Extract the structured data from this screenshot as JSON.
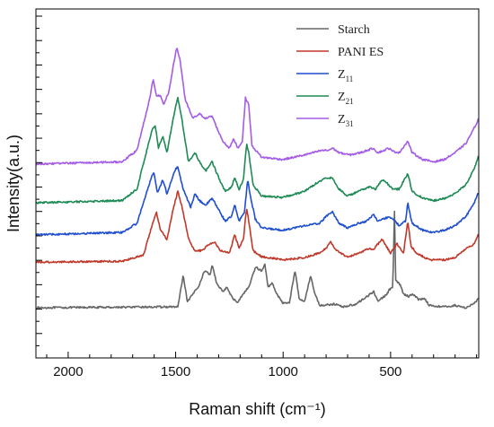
{
  "chart_data": {
    "type": "line",
    "title": "",
    "xlabel": "Raman shift  (cm⁻¹)",
    "ylabel": "Intensity(a.u.)",
    "xlim": [
      2150,
      90
    ],
    "x_reversed": true,
    "xticks": [
      2000,
      1500,
      1000,
      500
    ],
    "y_tick_labels_shown": false,
    "legend": {
      "position": "top-right",
      "frame": false
    },
    "grid": false,
    "series": [
      {
        "name": "Starch",
        "label_main": "Starch",
        "label_sub": "",
        "color": "#666666",
        "baseline": 0,
        "noise": 0.02,
        "points": [
          [
            2150,
            0
          ],
          [
            1490,
            0.02
          ],
          [
            1465,
            0.7
          ],
          [
            1445,
            0.12
          ],
          [
            1420,
            0.3
          ],
          [
            1390,
            0.5
          ],
          [
            1365,
            0.82
          ],
          [
            1340,
            0.72
          ],
          [
            1330,
            0.95
          ],
          [
            1310,
            0.55
          ],
          [
            1280,
            0.35
          ],
          [
            1262,
            0.45
          ],
          [
            1235,
            0.2
          ],
          [
            1210,
            0.12
          ],
          [
            1190,
            0.28
          ],
          [
            1160,
            0.45
          ],
          [
            1128,
            0.9
          ],
          [
            1100,
            0.8
          ],
          [
            1085,
            0.95
          ],
          [
            1070,
            0.45
          ],
          [
            1050,
            0.55
          ],
          [
            1030,
            0.3
          ],
          [
            1000,
            0.1
          ],
          [
            970,
            0.12
          ],
          [
            945,
            0.82
          ],
          [
            925,
            0.2
          ],
          [
            900,
            0.15
          ],
          [
            872,
            0.7
          ],
          [
            855,
            0.35
          ],
          [
            830,
            0.05
          ],
          [
            760,
            0.08
          ],
          [
            720,
            0.02
          ],
          [
            660,
            0.08
          ],
          [
            610,
            0.25
          ],
          [
            578,
            0.35
          ],
          [
            560,
            0.15
          ],
          [
            520,
            0.28
          ],
          [
            505,
            0.4
          ],
          [
            490,
            0.45
          ],
          [
            482,
            2.1
          ],
          [
            476,
            0.6
          ],
          [
            455,
            0.5
          ],
          [
            440,
            0.3
          ],
          [
            415,
            0.25
          ],
          [
            395,
            0.3
          ],
          [
            370,
            0.18
          ],
          [
            340,
            0.2
          ],
          [
            320,
            0.05
          ],
          [
            250,
            0.02
          ],
          [
            200,
            0.05
          ],
          [
            150,
            0
          ],
          [
            110,
            0.1
          ],
          [
            90,
            0.2
          ]
        ]
      },
      {
        "name": "PANI ES",
        "label_main": "PANI ES",
        "label_sub": "",
        "color": "#c0392b",
        "baseline": 1,
        "noise": 0.02,
        "points": [
          [
            2150,
            0
          ],
          [
            1750,
            0.02
          ],
          [
            1650,
            0.15
          ],
          [
            1610,
            0.8
          ],
          [
            1590,
            1.1
          ],
          [
            1570,
            0.7
          ],
          [
            1555,
            0.6
          ],
          [
            1540,
            0.5
          ],
          [
            1510,
            1.2
          ],
          [
            1490,
            1.55
          ],
          [
            1470,
            1.2
          ],
          [
            1440,
            0.5
          ],
          [
            1410,
            0.25
          ],
          [
            1380,
            0.25
          ],
          [
            1340,
            0.4
          ],
          [
            1320,
            0.45
          ],
          [
            1290,
            0.25
          ],
          [
            1250,
            0.2
          ],
          [
            1225,
            0.6
          ],
          [
            1205,
            0.3
          ],
          [
            1185,
            0.5
          ],
          [
            1170,
            1.2
          ],
          [
            1160,
            0.9
          ],
          [
            1140,
            0.25
          ],
          [
            1100,
            0.12
          ],
          [
            1000,
            0.05
          ],
          [
            900,
            0.1
          ],
          [
            830,
            0.2
          ],
          [
            800,
            0.3
          ],
          [
            780,
            0.45
          ],
          [
            760,
            0.3
          ],
          [
            700,
            0.1
          ],
          [
            650,
            0.2
          ],
          [
            600,
            0.3
          ],
          [
            580,
            0.28
          ],
          [
            540,
            0.5
          ],
          [
            520,
            0.35
          ],
          [
            500,
            0.2
          ],
          [
            470,
            0.4
          ],
          [
            440,
            0.2
          ],
          [
            420,
            0.9
          ],
          [
            405,
            0.35
          ],
          [
            380,
            0.2
          ],
          [
            320,
            0.05
          ],
          [
            250,
            0.05
          ],
          [
            200,
            0.1
          ],
          [
            150,
            0.3
          ],
          [
            110,
            0.4
          ],
          [
            90,
            0.65
          ]
        ]
      },
      {
        "name": "Z11",
        "label_main": "Z",
        "label_sub": "11",
        "color": "#1f4fd0",
        "baseline": 1.6,
        "noise": 0.02,
        "points": [
          [
            2150,
            0
          ],
          [
            1750,
            0.05
          ],
          [
            1680,
            0.25
          ],
          [
            1610,
            1.3
          ],
          [
            1600,
            1.35
          ],
          [
            1585,
            0.9
          ],
          [
            1560,
            1.2
          ],
          [
            1540,
            0.9
          ],
          [
            1505,
            1.4
          ],
          [
            1490,
            1.5
          ],
          [
            1465,
            1.0
          ],
          [
            1430,
            0.6
          ],
          [
            1410,
            0.9
          ],
          [
            1390,
            0.75
          ],
          [
            1360,
            0.65
          ],
          [
            1330,
            0.8
          ],
          [
            1300,
            0.55
          ],
          [
            1270,
            0.3
          ],
          [
            1240,
            0.4
          ],
          [
            1225,
            0.65
          ],
          [
            1205,
            0.3
          ],
          [
            1180,
            0.5
          ],
          [
            1165,
            1.2
          ],
          [
            1150,
            0.8
          ],
          [
            1130,
            0.35
          ],
          [
            1100,
            0.15
          ],
          [
            1000,
            0.1
          ],
          [
            900,
            0.2
          ],
          [
            830,
            0.25
          ],
          [
            790,
            0.45
          ],
          [
            770,
            0.5
          ],
          [
            740,
            0.25
          ],
          [
            700,
            0.15
          ],
          [
            650,
            0.25
          ],
          [
            610,
            0.3
          ],
          [
            580,
            0.45
          ],
          [
            560,
            0.3
          ],
          [
            530,
            0.35
          ],
          [
            505,
            0.4
          ],
          [
            480,
            0.3
          ],
          [
            460,
            0.2
          ],
          [
            430,
            0.3
          ],
          [
            420,
            0.7
          ],
          [
            400,
            0.25
          ],
          [
            350,
            0.1
          ],
          [
            300,
            0.05
          ],
          [
            250,
            0.1
          ],
          [
            200,
            0.2
          ],
          [
            150,
            0.4
          ],
          [
            110,
            0.7
          ],
          [
            90,
            0.95
          ]
        ]
      },
      {
        "name": "Z21",
        "label_main": "Z",
        "label_sub": "21",
        "color": "#1e8a55",
        "baseline": 2.3,
        "noise": 0.02,
        "points": [
          [
            2150,
            0
          ],
          [
            1750,
            0.05
          ],
          [
            1680,
            0.3
          ],
          [
            1610,
            1.6
          ],
          [
            1595,
            1.7
          ],
          [
            1580,
            1.2
          ],
          [
            1560,
            1.45
          ],
          [
            1540,
            1.1
          ],
          [
            1505,
            2.0
          ],
          [
            1490,
            2.3
          ],
          [
            1470,
            1.8
          ],
          [
            1440,
            0.9
          ],
          [
            1410,
            1.1
          ],
          [
            1390,
            0.9
          ],
          [
            1360,
            0.7
          ],
          [
            1330,
            0.9
          ],
          [
            1300,
            0.55
          ],
          [
            1270,
            0.25
          ],
          [
            1240,
            0.35
          ],
          [
            1225,
            0.55
          ],
          [
            1205,
            0.3
          ],
          [
            1185,
            0.5
          ],
          [
            1170,
            1.3
          ],
          [
            1160,
            1.1
          ],
          [
            1140,
            0.4
          ],
          [
            1100,
            0.15
          ],
          [
            1000,
            0.12
          ],
          [
            900,
            0.25
          ],
          [
            840,
            0.45
          ],
          [
            800,
            0.55
          ],
          [
            770,
            0.55
          ],
          [
            740,
            0.3
          ],
          [
            700,
            0.15
          ],
          [
            650,
            0.25
          ],
          [
            600,
            0.35
          ],
          [
            570,
            0.3
          ],
          [
            540,
            0.5
          ],
          [
            520,
            0.45
          ],
          [
            490,
            0.3
          ],
          [
            460,
            0.3
          ],
          [
            420,
            0.65
          ],
          [
            400,
            0.25
          ],
          [
            350,
            0.1
          ],
          [
            300,
            0.05
          ],
          [
            250,
            0.1
          ],
          [
            200,
            0.2
          ],
          [
            150,
            0.4
          ],
          [
            110,
            0.75
          ],
          [
            90,
            1.05
          ]
        ]
      },
      {
        "name": "Z31",
        "label_main": "Z",
        "label_sub": "31",
        "color": "#a45ce6",
        "baseline": 3.15,
        "noise": 0.02,
        "points": [
          [
            2150,
            0
          ],
          [
            1750,
            0.05
          ],
          [
            1680,
            0.3
          ],
          [
            1620,
            1.45
          ],
          [
            1605,
            1.85
          ],
          [
            1590,
            1.5
          ],
          [
            1570,
            1.5
          ],
          [
            1555,
            1.3
          ],
          [
            1530,
            1.6
          ],
          [
            1510,
            2.2
          ],
          [
            1495,
            2.55
          ],
          [
            1480,
            2.3
          ],
          [
            1455,
            1.4
          ],
          [
            1420,
            1.0
          ],
          [
            1390,
            1.1
          ],
          [
            1360,
            1.0
          ],
          [
            1330,
            1.05
          ],
          [
            1300,
            0.7
          ],
          [
            1280,
            0.5
          ],
          [
            1250,
            0.35
          ],
          [
            1230,
            0.55
          ],
          [
            1210,
            0.35
          ],
          [
            1190,
            0.5
          ],
          [
            1175,
            1.45
          ],
          [
            1160,
            1.3
          ],
          [
            1145,
            0.4
          ],
          [
            1100,
            0.15
          ],
          [
            1000,
            0.1
          ],
          [
            900,
            0.2
          ],
          [
            820,
            0.3
          ],
          [
            790,
            0.3
          ],
          [
            770,
            0.35
          ],
          [
            740,
            0.25
          ],
          [
            690,
            0.2
          ],
          [
            640,
            0.25
          ],
          [
            610,
            0.3
          ],
          [
            580,
            0.35
          ],
          [
            560,
            0.25
          ],
          [
            530,
            0.3
          ],
          [
            510,
            0.35
          ],
          [
            490,
            0.28
          ],
          [
            460,
            0.25
          ],
          [
            420,
            0.5
          ],
          [
            400,
            0.25
          ],
          [
            350,
            0.1
          ],
          [
            300,
            0.05
          ],
          [
            250,
            0.1
          ],
          [
            200,
            0.25
          ],
          [
            150,
            0.45
          ],
          [
            110,
            0.8
          ],
          [
            90,
            1.0
          ]
        ]
      }
    ]
  }
}
